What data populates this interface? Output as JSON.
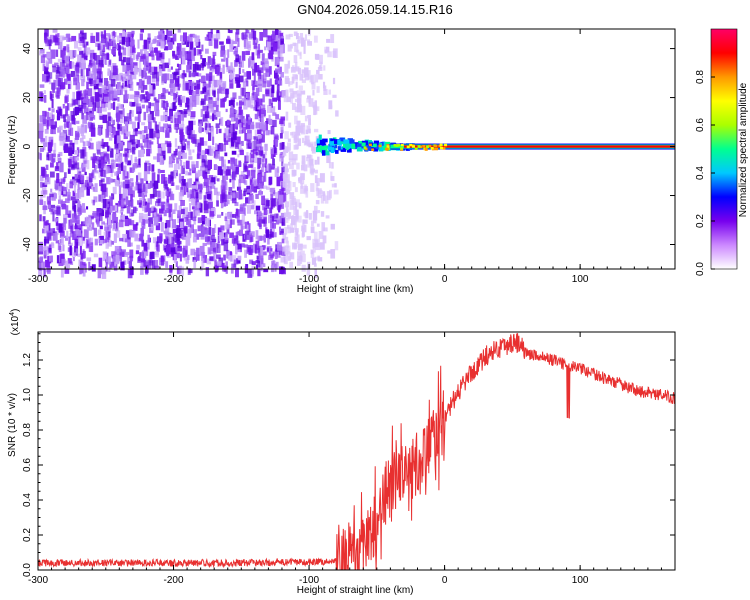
{
  "title": "GN04.2026.059.14.15.R16",
  "chart_data": [
    {
      "type": "heatmap",
      "xlabel": "Height of straight line (km)",
      "ylabel": "Frequency (Hz)",
      "xlim": [
        -300,
        170
      ],
      "ylim": [
        -50,
        48
      ],
      "x_ticks": [
        -300,
        -200,
        -100,
        0,
        100
      ],
      "y_ticks": [
        -40,
        -20,
        0,
        20,
        40
      ],
      "noise_region_x": [
        -300,
        -80
      ],
      "signal_line_frequency_hz": 0,
      "signal_onset_x": -95,
      "colorbar": {
        "label": "Normalized spectral amplitude",
        "range": [
          0,
          1
        ],
        "ticks": [
          0.0,
          0.2,
          0.4,
          0.6,
          0.8
        ],
        "colors": [
          "#ffffff",
          "#cc88ff",
          "#7700ee",
          "#0000ff",
          "#00c8ff",
          "#00ff90",
          "#aaff00",
          "#ffff00",
          "#ff9900",
          "#ff0000",
          "#ff0066"
        ]
      }
    },
    {
      "type": "line",
      "xlabel": "Height of straight line (km)",
      "ylabel": "SNR (10 * v/v)",
      "y_scale_label": "(x10",
      "y_scale_exponent": "4",
      "xlim": [
        -300,
        170
      ],
      "ylim": [
        0,
        1.36
      ],
      "x_ticks": [
        -300,
        -200,
        -100,
        0,
        100
      ],
      "y_ticks": [
        0.0,
        0.2,
        0.4,
        0.6,
        0.8,
        1.0,
        1.2
      ],
      "series_color": "#e83030",
      "profile_x": [
        -300,
        -150,
        -80,
        -70,
        -60,
        -50,
        -45,
        -40,
        -30,
        -20,
        -10,
        0,
        10,
        20,
        30,
        40,
        50,
        55,
        60,
        70,
        80,
        90,
        100,
        110,
        120,
        130,
        140,
        150,
        160,
        170
      ],
      "profile_y": [
        0.04,
        0.04,
        0.05,
        0.08,
        0.14,
        0.28,
        0.4,
        0.5,
        0.55,
        0.6,
        0.72,
        0.86,
        1.02,
        1.13,
        1.22,
        1.27,
        1.3,
        1.3,
        1.24,
        1.22,
        1.2,
        1.17,
        1.15,
        1.12,
        1.09,
        1.06,
        1.03,
        1.01,
        1.0,
        0.98
      ]
    }
  ]
}
